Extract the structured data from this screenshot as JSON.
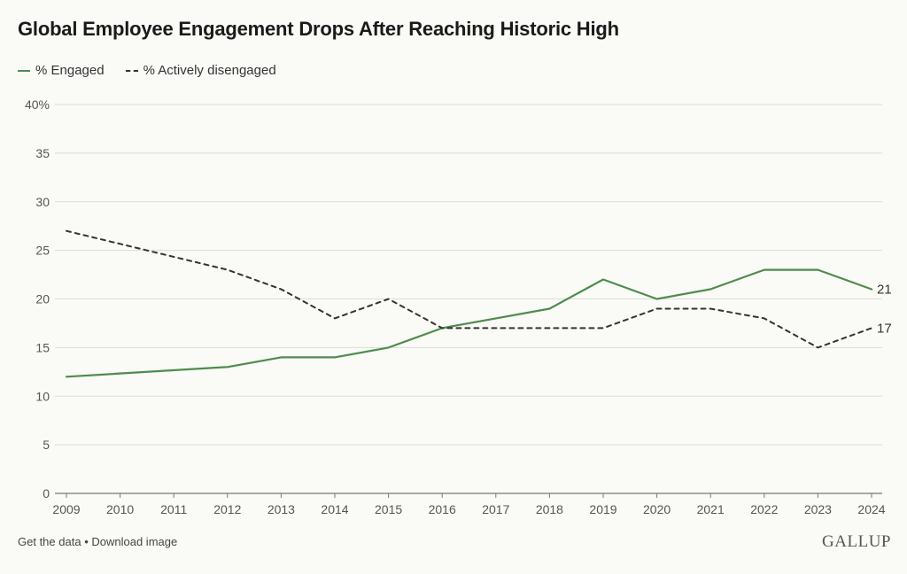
{
  "title": "Global Employee Engagement Drops After Reaching Historic High",
  "colors": {
    "engaged": "#4e8c4c",
    "disengaged": "#333333",
    "grid": "#dcdcd6",
    "axis_text": "#555555"
  },
  "footer": {
    "get_data": "Get the data",
    "separator": "•",
    "download": "Download image",
    "brand": "GALLUP"
  },
  "chart_data": {
    "type": "line",
    "title": "Global Employee Engagement Drops After Reaching Historic High",
    "xlabel": "",
    "ylabel": "",
    "x": [
      2009,
      2010,
      2011,
      2012,
      2013,
      2014,
      2015,
      2016,
      2017,
      2018,
      2019,
      2020,
      2021,
      2022,
      2023,
      2024
    ],
    "xlim": [
      2009,
      2024
    ],
    "ylim": [
      0,
      40
    ],
    "yticks": [
      0,
      5,
      10,
      15,
      20,
      25,
      30,
      35,
      40
    ],
    "ytick_labels": [
      "0",
      "5",
      "10",
      "15",
      "20",
      "25",
      "30",
      "35",
      "40%"
    ],
    "grid": true,
    "legend_position": "top-left",
    "series": [
      {
        "name": "% Engaged",
        "style": "solid",
        "values": [
          12,
          null,
          null,
          13,
          14,
          14,
          15,
          17,
          18,
          19,
          22,
          20,
          21,
          23,
          23,
          21
        ],
        "end_label": "21"
      },
      {
        "name": "% Actively disengaged",
        "style": "dashed",
        "values": [
          27,
          null,
          null,
          23,
          21,
          18,
          20,
          17,
          17,
          17,
          17,
          19,
          19,
          18,
          15,
          17
        ],
        "end_label": "17"
      }
    ]
  }
}
